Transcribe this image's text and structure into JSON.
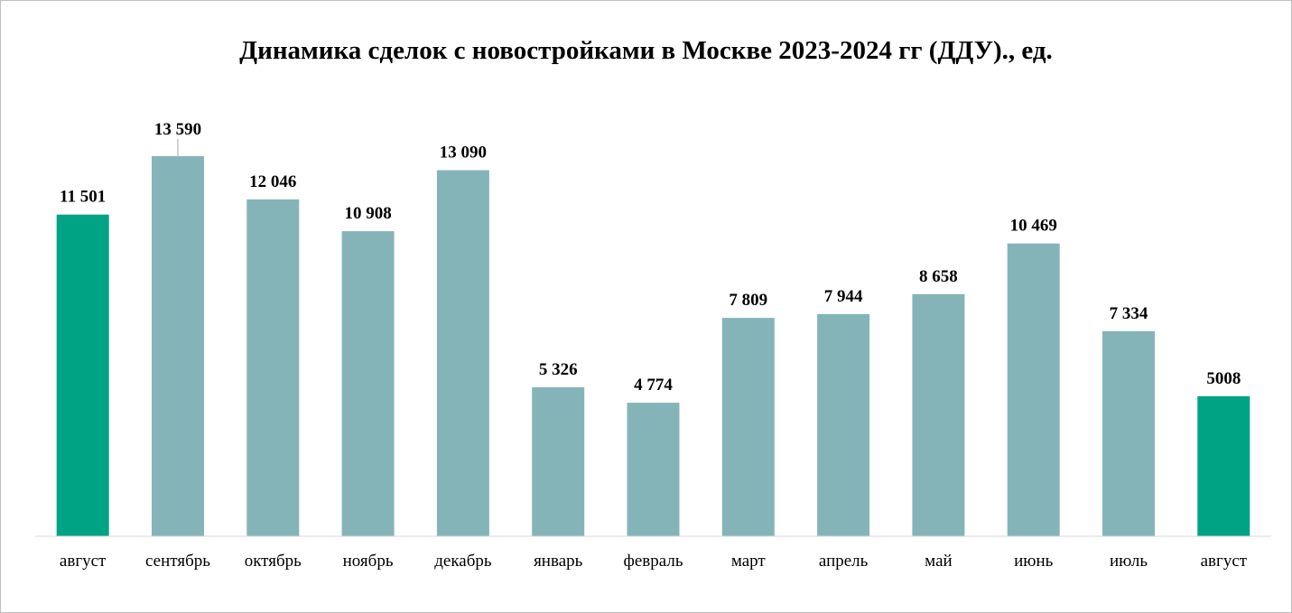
{
  "chart_data": {
    "type": "bar",
    "title": "Динамика сделок с новостройками в Москве 2023-2024 гг (ДДУ)., ед.",
    "categories": [
      "август",
      "сентябрь",
      "октябрь",
      "ноябрь",
      "декабрь",
      "январь",
      "февраль",
      "март",
      "апрель",
      "май",
      "июнь",
      "июль",
      "август"
    ],
    "values": [
      11501,
      13590,
      12046,
      10908,
      13090,
      5326,
      4774,
      7809,
      7944,
      8658,
      10469,
      7334,
      5008
    ],
    "value_labels": [
      "11 501",
      "13 590",
      "12 046",
      "10 908",
      "13 090",
      "5 326",
      "4 774",
      "7 809",
      "7 944",
      "8 658",
      "10 469",
      "7 334",
      "5008"
    ],
    "highlighted": [
      0,
      12
    ],
    "colors": {
      "bar": "#85b4b8",
      "highlight": "#00a383",
      "axis": "#d9d9d9",
      "text": "#000000"
    },
    "xlabel": "",
    "ylabel": "",
    "ylim": [
      0,
      16500
    ],
    "grid": false,
    "legend": "none"
  }
}
